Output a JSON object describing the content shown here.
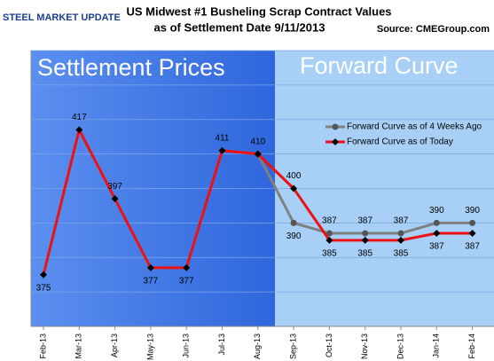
{
  "chart_data": {
    "type": "line",
    "logo": "STEEL MARKET UPDATE",
    "title": "US Midwest #1 Busheling Scrap Contract Values",
    "subtitle": "as of Settlement Date 9/11/2013",
    "source": "Source: CMEGroup.com",
    "regions": [
      {
        "label": "Settlement Prices",
        "color": "#3b73e0"
      },
      {
        "label": "Forward Curve",
        "color": "#a8d0f7"
      }
    ],
    "categories": [
      "Feb-13",
      "Mar-13",
      "Apr-13",
      "May-13",
      "Jun-13",
      "Jul-13",
      "Aug-13",
      "Sep-13",
      "Oct-13",
      "Nov-13",
      "Dec-13",
      "Jan-14",
      "Feb-14"
    ],
    "series": [
      {
        "name": "Forward Curve as of 4 Weeks Ago",
        "color": "#808080",
        "marker_color": "#555555",
        "values": [
          null,
          null,
          null,
          null,
          null,
          null,
          410,
          390,
          387,
          387,
          387,
          390,
          390
        ]
      },
      {
        "name": "Forward Curve as of Today",
        "color": "#ee1111",
        "marker_color": "#000000",
        "values": [
          375,
          417,
          397,
          377,
          377,
          411,
          410,
          400,
          385,
          385,
          385,
          387,
          387
        ]
      }
    ],
    "ylim": [
      360,
      440
    ],
    "yticks": [
      360,
      370,
      380,
      390,
      400,
      410,
      420,
      430,
      440
    ],
    "grid": true
  }
}
